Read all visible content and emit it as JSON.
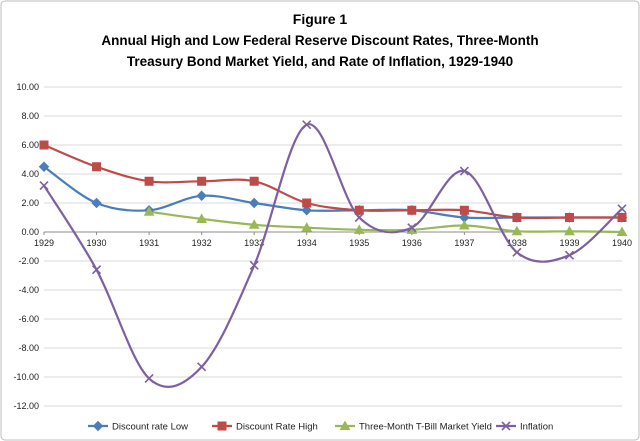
{
  "chart_data": {
    "type": "line",
    "title": "Figure 1",
    "subtitle": [
      "Annual High and Low Federal Reserve Discount Rates, Three-Month",
      "Treasury Bond Market Yield, and Rate of Inflation, 1929-1940"
    ],
    "xlabel": "",
    "ylabel": "",
    "x": [
      "1929",
      "1930",
      "1931",
      "1932",
      "1933",
      "1934",
      "1935",
      "1936",
      "1937",
      "1938",
      "1939",
      "1940"
    ],
    "ylim": [
      -12,
      10
    ],
    "yticks": [
      "10.00",
      "8.00",
      "6.00",
      "4.00",
      "2.00",
      "0.00",
      "-2.00",
      "-4.00",
      "-6.00",
      "-8.00",
      "-10.00",
      "-12.00"
    ],
    "ytick_values": [
      10,
      8,
      6,
      4,
      2,
      0,
      -2,
      -4,
      -6,
      -8,
      -10,
      -12
    ],
    "grid": true,
    "legend_position": "bottom",
    "series": [
      {
        "name": "Discount rate Low",
        "color": "#4A7EBB",
        "marker": "diamond",
        "smooth": true,
        "values": [
          4.5,
          2.0,
          1.5,
          2.5,
          2.0,
          1.5,
          1.5,
          1.5,
          1.0,
          1.0,
          1.0,
          1.0
        ]
      },
      {
        "name": "Discount Rate High",
        "color": "#BE4B48",
        "marker": "square",
        "smooth": true,
        "values": [
          6.0,
          4.5,
          3.5,
          3.5,
          3.5,
          2.0,
          1.5,
          1.5,
          1.5,
          1.0,
          1.0,
          1.0
        ]
      },
      {
        "name": "Three-Month T-Bill Market Yield",
        "color": "#98B954",
        "marker": "triangle",
        "smooth": true,
        "values": [
          null,
          null,
          1.4,
          0.9,
          0.5,
          0.3,
          0.15,
          0.15,
          0.45,
          0.05,
          0.05,
          0.0
        ]
      },
      {
        "name": "Inflation",
        "color": "#7D60A0",
        "marker": "x",
        "smooth": true,
        "values": [
          3.2,
          -2.6,
          -10.1,
          -9.3,
          -2.3,
          7.4,
          1.0,
          0.3,
          4.2,
          -1.4,
          -1.6,
          1.6
        ]
      }
    ]
  }
}
